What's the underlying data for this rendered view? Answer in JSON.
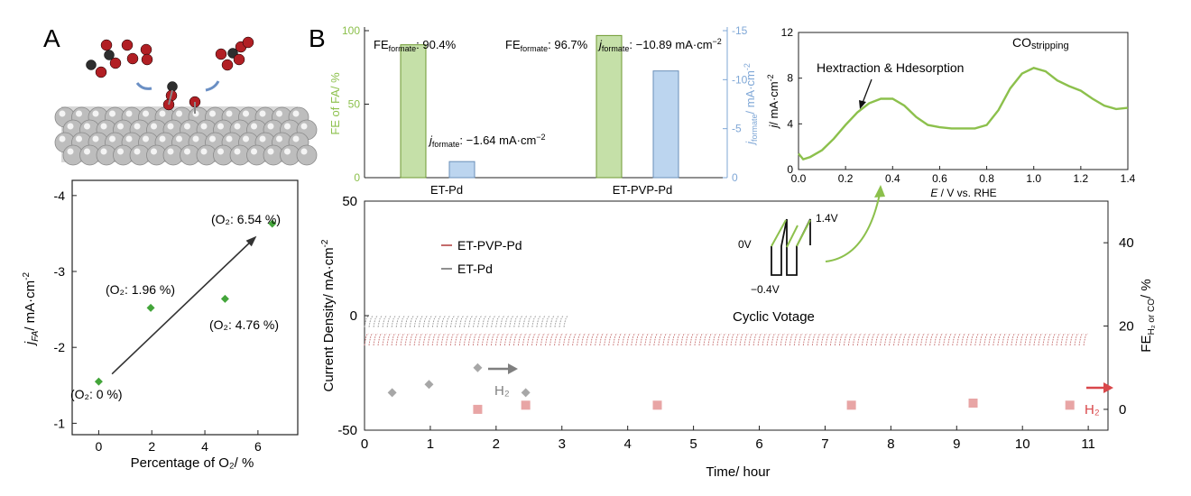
{
  "panels": {
    "a_label": "A",
    "b_label": "B"
  },
  "colors": {
    "green": "#8cc04c",
    "green_edge": "#6f9a33",
    "blue": "#bcd5ef",
    "blue_axis": "#7fa7d6",
    "marker_green": "#43a53a",
    "pvp_red": "#c46a6a",
    "pd_gray": "#8f8f8f",
    "fe_gray": "#a7a7a7",
    "fe_pink": "#e8a5a5",
    "arrow_red": "#d9474a",
    "arrow_gray": "#7f7f7f",
    "axis": "#222222"
  },
  "chart_data": [
    {
      "id": "panelA",
      "type": "scatter",
      "xlabel": "Percentage of O₂/ %",
      "ylabel": "j_FA / mA·cm⁻²",
      "ylabel_main": "j",
      "ylabel_sub": "FA",
      "ylabel_rest": "/ mA·cm",
      "ylabel_sup": "-2",
      "xlim": [
        -1,
        7.5
      ],
      "ylim": [
        -0.85,
        -4.2
      ],
      "xticks": [
        0,
        2,
        4,
        6
      ],
      "xtick_labels": [
        "0",
        "2",
        "4",
        "6"
      ],
      "yticks": [
        -1,
        -2,
        -3,
        -4
      ],
      "ytick_labels": [
        "-1",
        "-2",
        "-3",
        "-4"
      ],
      "points": [
        {
          "x": 0,
          "y": -1.55,
          "label": "(O₂: 0 %)"
        },
        {
          "x": 1.96,
          "y": -2.52,
          "label": "(O₂: 1.96 %)"
        },
        {
          "x": 4.76,
          "y": -2.64,
          "label": "(O₂: 4.76 %)"
        },
        {
          "x": 6.54,
          "y": -3.63,
          "label": "(O₂: 6.54 %)"
        }
      ],
      "trend_arrow": {
        "from": [
          0.5,
          -1.65
        ],
        "to": [
          5.9,
          -3.45
        ]
      }
    },
    {
      "id": "panelB_bars",
      "type": "bar",
      "categories": [
        "ET-Pd",
        "ET-PVP-Pd"
      ],
      "series": [
        {
          "name": "FE of FA",
          "axis": "left",
          "values": [
            90.4,
            96.7
          ]
        },
        {
          "name": "j_formate",
          "axis": "right",
          "values": [
            -1.64,
            -10.89
          ]
        }
      ],
      "left_ylabel": "FE of FA/ %",
      "right_ylabel": "j_formate / mA·cm⁻²",
      "right_ylabel_main": "j",
      "right_ylabel_sub": "formate",
      "right_ylabel_rest": "/ mA·cm",
      "right_ylabel_sup": "-2",
      "left_ylim": [
        0,
        100
      ],
      "right_ylim": [
        0,
        -15
      ],
      "left_ticks": [
        0,
        50,
        100
      ],
      "left_tick_labels": [
        "0",
        "50",
        "100"
      ],
      "right_ticks": [
        0,
        -5,
        -10,
        -15
      ],
      "right_tick_labels": [
        "0",
        "-5",
        "-10",
        "-15"
      ],
      "annotations": {
        "fe1_main": "FE",
        "fe1_sub": "formate",
        "fe1_val": ": 90.4%",
        "fe2_main": "FE",
        "fe2_sub": "formate",
        "fe2_val": ": 96.7%",
        "j1_main": "j",
        "j1_sub": "formate",
        "j1_val": ": −1.64 mA·cm",
        "j1_sup": "−2",
        "j2_main": "j",
        "j2_sub": "formate",
        "j2_val": ": −10.89 mA·cm",
        "j2_sup": "−2"
      }
    },
    {
      "id": "panelB_cv",
      "type": "line",
      "xlabel_main": "E",
      "xlabel_rest": " / V vs. RHE",
      "ylabel_main": "j",
      "ylabel_rest": "/ mA·cm",
      "ylabel_sup": "-2",
      "xlim": [
        0,
        1.4
      ],
      "ylim": [
        0,
        12
      ],
      "xticks": [
        0.0,
        0.2,
        0.4,
        0.6,
        0.8,
        1.0,
        1.2,
        1.4
      ],
      "xtick_labels": [
        "0.0",
        "0.2",
        "0.4",
        "0.6",
        "0.8",
        "1.0",
        "1.2",
        "1.4"
      ],
      "yticks": [
        0,
        4,
        8,
        12
      ],
      "ytick_labels": [
        "0",
        "4",
        "8",
        "12"
      ],
      "x": [
        0.0,
        0.02,
        0.05,
        0.1,
        0.15,
        0.2,
        0.25,
        0.3,
        0.35,
        0.4,
        0.45,
        0.5,
        0.55,
        0.6,
        0.65,
        0.7,
        0.75,
        0.8,
        0.85,
        0.9,
        0.95,
        1.0,
        1.05,
        1.1,
        1.15,
        1.2,
        1.25,
        1.3,
        1.35,
        1.4
      ],
      "y": [
        1.4,
        0.9,
        1.1,
        1.7,
        2.7,
        3.9,
        5.0,
        5.8,
        6.2,
        6.2,
        5.6,
        4.6,
        3.9,
        3.7,
        3.6,
        3.6,
        3.6,
        3.9,
        5.2,
        7.1,
        8.4,
        8.9,
        8.6,
        7.8,
        7.3,
        6.9,
        6.2,
        5.6,
        5.3,
        5.4
      ],
      "annotation_h_extraction": "Hextraction & Hdesorption",
      "annotation_co": "CO",
      "annotation_co_sub": "stripping"
    },
    {
      "id": "panelB_stability",
      "type": "scatter",
      "xlabel": "Time/ hour",
      "left_ylabel": "Current Density/ mA·cm⁻²",
      "left_ylabel_rest": "Current Density/ mA·cm",
      "left_ylabel_sup": "-2",
      "right_ylabel": "FE_H2 or CO / %",
      "right_ylabel_main": "FE",
      "right_ylabel_sub": "H₂ or CO",
      "right_ylabel_rest": "/ %",
      "xlim": [
        0,
        11.3
      ],
      "left_ylim": [
        -50,
        50
      ],
      "right_ylim": [
        -5,
        50
      ],
      "xticks": [
        0,
        1,
        2,
        3,
        4,
        5,
        6,
        7,
        8,
        9,
        10,
        11
      ],
      "xtick_labels": [
        "0",
        "1",
        "2",
        "3",
        "4",
        "5",
        "6",
        "7",
        "8",
        "9",
        "10",
        "11"
      ],
      "left_ticks": [
        -50,
        0,
        50
      ],
      "left_tick_labels": [
        "-50",
        "0",
        "50"
      ],
      "right_ticks": [
        0,
        20,
        40
      ],
      "right_tick_labels": [
        "0",
        "20",
        "40"
      ],
      "series": [
        {
          "name": "ET-PVP-Pd",
          "kind": "current",
          "time_range": [
            0,
            11
          ],
          "upper": -8,
          "lower": -13,
          "cycles": 160
        },
        {
          "name": "ET-Pd",
          "kind": "current",
          "time_range": [
            0,
            3.1
          ],
          "upper": -0.5,
          "lower": -5,
          "cycles": 45
        },
        {
          "name": "FE_H2 ET-Pd",
          "kind": "fe",
          "x": [
            0.42,
            0.98,
            1.72,
            2.45
          ],
          "y": [
            4,
            6,
            10,
            4
          ]
        },
        {
          "name": "FE_H2 ET-PVP-Pd",
          "kind": "fe",
          "x": [
            1.72,
            2.45,
            4.45,
            7.4,
            9.25,
            10.72
          ],
          "y": [
            0,
            1,
            1,
            1,
            1.5,
            1
          ]
        }
      ],
      "legend": [
        "ET-PVP-Pd",
        "ET-Pd"
      ],
      "annotation_cyclic": "Cyclic Votage",
      "arrow_label_gray": "H₂",
      "arrow_label_red": "H₂",
      "waveform_labels": {
        "v0": "0V",
        "v14": "1.4V",
        "vm04": "−0.4V"
      }
    }
  ],
  "bars_xlabels": [
    "ET-Pd",
    "ET-PVP-Pd"
  ],
  "panelA_image_alt": "CO and O2 molecules over Pd slab"
}
